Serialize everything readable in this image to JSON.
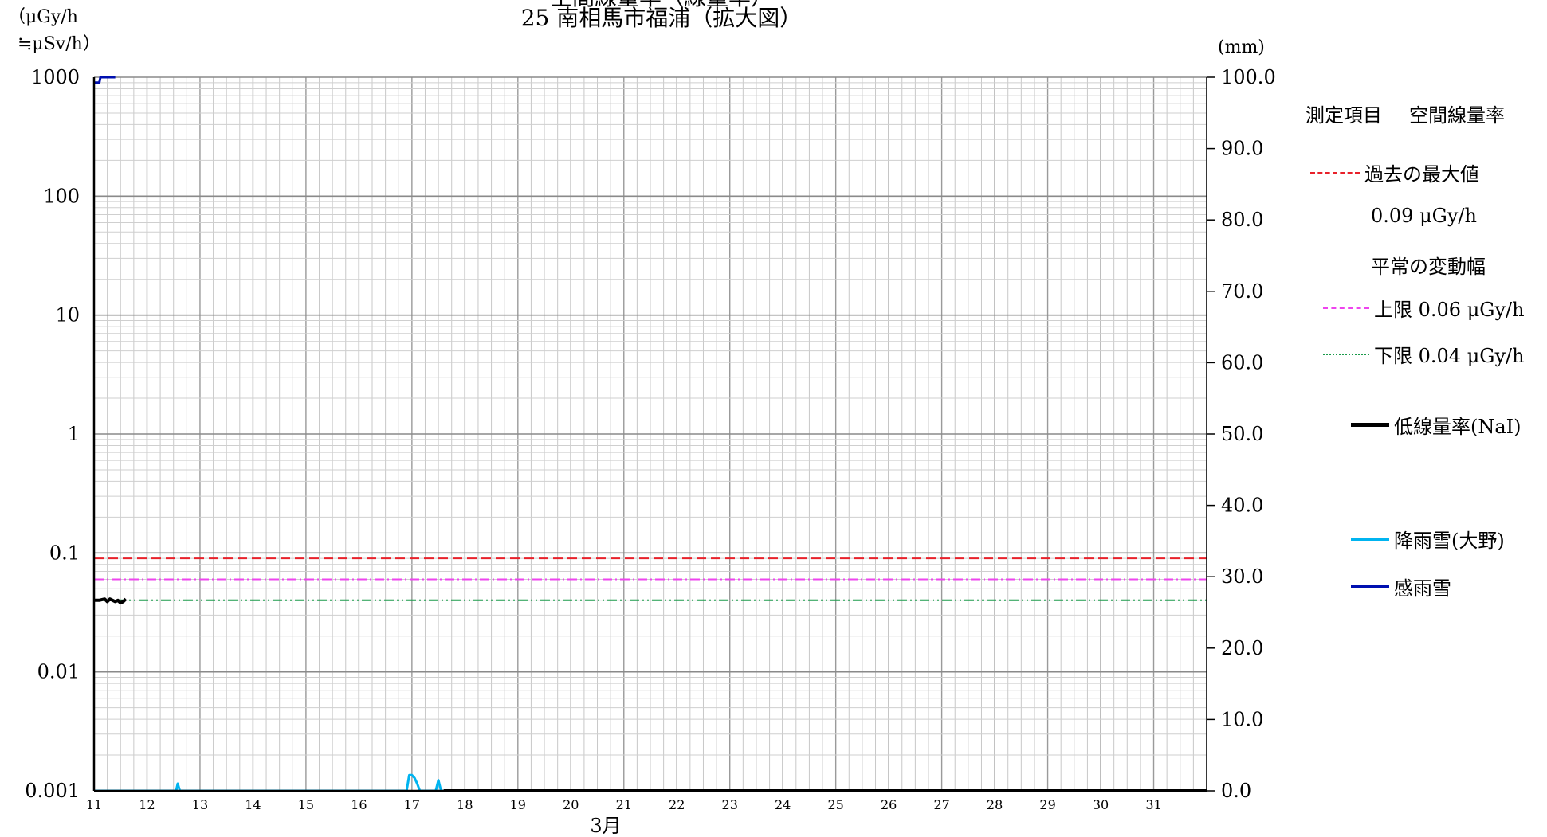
{
  "header": {
    "title_line1": "空間線量率（線量率）",
    "title_line2": "25 南相馬市福浦（拡大図）",
    "left_unit_line1": "（μGy/h",
    "left_unit_line2": "≒μSv/h）",
    "right_unit": "(mm)"
  },
  "legend": {
    "measure_label": "測定項目",
    "measure_value": "空間線量率",
    "past_max_label": "過去の最大値",
    "past_max_value": "0.09 μGy/h",
    "normal_range_label": "平常の変動幅",
    "upper_label": "上限 0.06 μGy/h",
    "lower_label": "下限 0.04 μGy/h",
    "nai_label": "低線量率(NaI)",
    "rain_label": "降雨雪(大野)",
    "sense_label": "感雨雪",
    "colors": {
      "past_max": "#e8212a",
      "upper": "#ee44ee",
      "lower": "#1a9a4a",
      "nai": "#000000",
      "rain": "#00b4f0",
      "sense": "#0010b0"
    }
  },
  "chart_data": {
    "type": "line",
    "xlabel": "3月",
    "x_ticks": [
      11,
      12,
      13,
      14,
      15,
      16,
      17,
      18,
      19,
      20,
      21,
      22,
      23,
      24,
      25,
      26,
      27,
      28,
      29,
      30,
      31
    ],
    "xlim": [
      11,
      32
    ],
    "y_left": {
      "scale": "log",
      "ylim": [
        0.001,
        1000
      ],
      "ticks": [
        "0.001",
        "0.01",
        "0.1",
        "1",
        "10",
        "100",
        "1000"
      ]
    },
    "y_right": {
      "ylim": [
        0,
        100
      ],
      "ticks": [
        "0.0",
        "10.0",
        "20.0",
        "30.0",
        "40.0",
        "50.0",
        "60.0",
        "70.0",
        "80.0",
        "90.0",
        "100.0"
      ]
    },
    "reference_lines": [
      {
        "name": "過去の最大値",
        "value": 0.09,
        "style": "dashed"
      },
      {
        "name": "上限",
        "value": 0.06,
        "style": "dash-dot"
      },
      {
        "name": "下限",
        "value": 0.04,
        "style": "dash-dot-dot"
      }
    ],
    "series": [
      {
        "name": "低線量率(NaI)",
        "axis": "left",
        "x": [
          11.0,
          11.1,
          11.2,
          11.25,
          11.3,
          11.35,
          11.4,
          11.45,
          11.5,
          11.55,
          11.6
        ],
        "y": [
          0.04,
          0.04,
          0.041,
          0.039,
          0.041,
          0.04,
          0.039,
          0.04,
          0.038,
          0.039,
          0.041
        ]
      },
      {
        "name": "降雨雪(大野)",
        "axis": "right",
        "x": [
          11.0,
          12.55,
          12.58,
          12.62,
          12.65,
          16.9,
          16.95,
          17.0,
          17.05,
          17.1,
          17.15,
          17.45,
          17.5,
          17.55,
          17.6,
          32.0
        ],
        "y": [
          0,
          0,
          1.0,
          0,
          0,
          0,
          2.2,
          2.2,
          1.8,
          1.0,
          0,
          0,
          1.5,
          0,
          0,
          0
        ]
      },
      {
        "name": "感雨雪",
        "axis": "left",
        "x": [
          11.0,
          11.05,
          11.1,
          11.12,
          11.2,
          11.4
        ],
        "y": [
          900,
          900,
          900,
          1000,
          1000,
          1000
        ]
      }
    ]
  }
}
